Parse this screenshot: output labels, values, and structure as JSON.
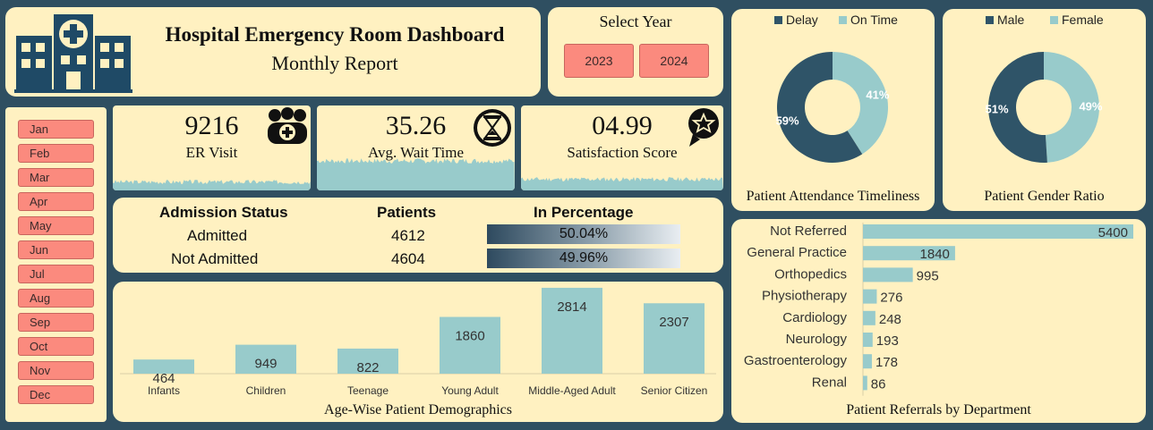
{
  "header": {
    "title": "Hospital Emergency Room Dashboard",
    "subtitle": "Monthly Report"
  },
  "year_selector": {
    "label": "Select Year",
    "years": [
      "2023",
      "2024"
    ]
  },
  "months": [
    "Jan",
    "Feb",
    "Mar",
    "Apr",
    "May",
    "Jun",
    "Jul",
    "Aug",
    "Sep",
    "Oct",
    "Nov",
    "Dec"
  ],
  "kpis": {
    "er_visit": {
      "value": "9216",
      "label": "ER Visit",
      "icon": "patients-icon"
    },
    "wait_time": {
      "value": "35.26",
      "label": "Avg. Wait Time",
      "icon": "hourglass-icon"
    },
    "satisfaction": {
      "value": "04.99",
      "label": "Satisfaction Score",
      "icon": "star-badge-icon"
    }
  },
  "admission": {
    "headers": [
      "Admission Status",
      "Patients",
      "In Percentage"
    ],
    "rows": [
      {
        "status": "Admitted",
        "patients": "4612",
        "percent": "50.04%"
      },
      {
        "status": "Not Admitted",
        "patients": "4604",
        "percent": "49.96%"
      }
    ]
  },
  "colors": {
    "dark": "#2f5468",
    "light": "#98cbcb",
    "bg": "#fff1c1",
    "button": "#fb8a7e",
    "frame": "#2f4f61"
  },
  "chart_data": [
    {
      "type": "pie",
      "title": "Patient Attendance Timeliness",
      "labels": [
        "Delay",
        "On Time"
      ],
      "values": [
        59,
        41
      ],
      "value_labels": [
        "59%",
        "41%"
      ],
      "legend": "top"
    },
    {
      "type": "pie",
      "title": "Patient Gender Ratio",
      "labels": [
        "Male",
        "Female"
      ],
      "values": [
        51,
        49
      ],
      "value_labels": [
        "51%",
        "49%"
      ],
      "legend": "top"
    },
    {
      "type": "bar",
      "title": "Age-Wise Patient Demographics",
      "categories": [
        "Infants",
        "Children",
        "Teenage",
        "Young Adult",
        "Middle-Aged Adult",
        "Senior Citizen"
      ],
      "values": [
        464,
        949,
        822,
        1860,
        2814,
        2307
      ],
      "ylim": [
        0,
        2900
      ]
    },
    {
      "type": "bar",
      "orientation": "horizontal",
      "title": "Patient Referrals by Department",
      "categories": [
        "Not Referred",
        "General Practice",
        "Orthopedics",
        "Physiotherapy",
        "Cardiology",
        "Neurology",
        "Gastroenterology",
        "Renal"
      ],
      "values": [
        5400,
        1840,
        995,
        276,
        248,
        193,
        178,
        86
      ],
      "xlim": [
        0,
        5400
      ]
    }
  ]
}
